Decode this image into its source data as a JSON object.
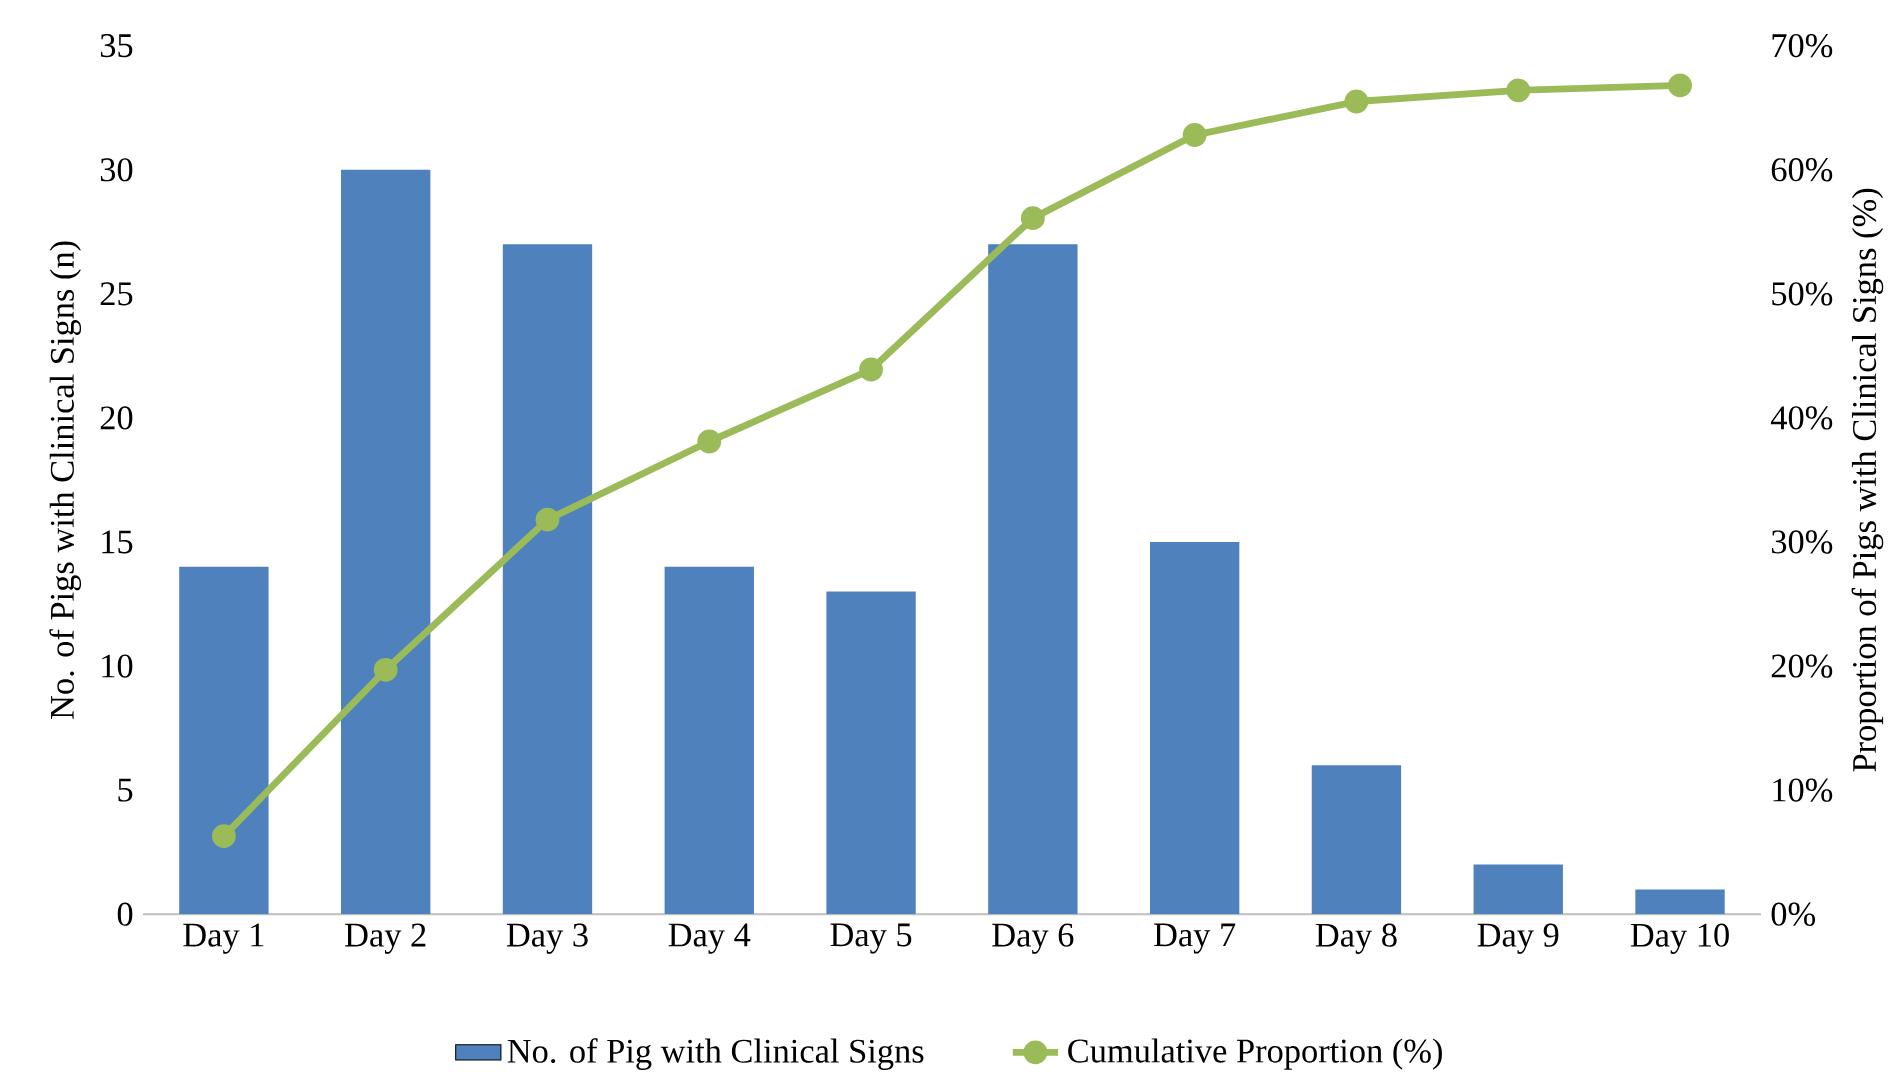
{
  "chart_data": {
    "type": "bar",
    "categories": [
      "Day 1",
      "Day 2",
      "Day 3",
      "Day 4",
      "Day 5",
      "Day 6",
      "Day 7",
      "Day 8",
      "Day 9",
      "Day 10"
    ],
    "ylabel": "No. of Pigs with Clinical Signs (n)",
    "y2label": "Proportion of Pigs with Clinical Signs (%)",
    "ylim": [
      0,
      35
    ],
    "yticks": [
      0,
      5,
      10,
      15,
      20,
      25,
      30,
      35
    ],
    "y2lim": [
      0,
      70
    ],
    "y2ticks": [
      {
        "value": 0,
        "label": "0%"
      },
      {
        "value": 10,
        "label": "10%"
      },
      {
        "value": 20,
        "label": "20%"
      },
      {
        "value": 30,
        "label": "30%"
      },
      {
        "value": 40,
        "label": "40%"
      },
      {
        "value": 50,
        "label": "50%"
      },
      {
        "value": 60,
        "label": "60%"
      },
      {
        "value": 70,
        "label": "70%"
      }
    ],
    "legend": "bottom",
    "marker": "circle",
    "series": [
      {
        "name": "No. of Pig with Clinical Signs",
        "color": "#4f81bd",
        "values": [
          14,
          30,
          27,
          14,
          13,
          27,
          15,
          6,
          2,
          1
        ]
      },
      {
        "name": "Cumulative Proportion (%)",
        "type": "line",
        "axis": "y2",
        "color": "#9bbb59",
        "values": [
          6.3,
          19.7,
          31.8,
          38.1,
          43.9,
          56.1,
          62.8,
          65.5,
          66.4,
          66.8
        ]
      }
    ]
  }
}
